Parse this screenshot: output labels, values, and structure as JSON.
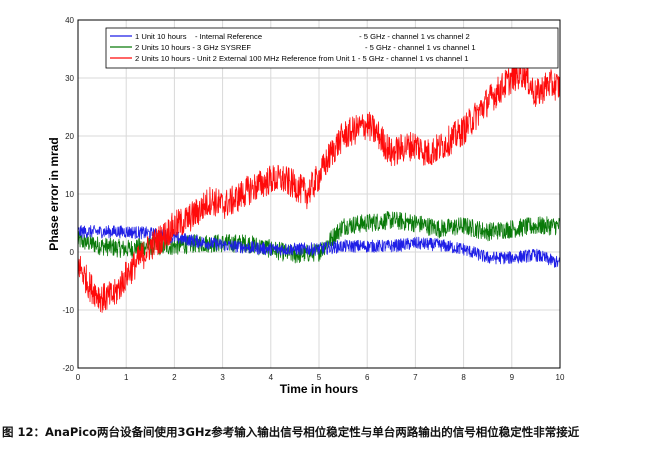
{
  "caption": "图 12：AnaPico两台设备间使用3GHz参考输入输出信号相位稳定性与单台两路输出的信号相位稳定性非常接近",
  "chart_data": {
    "type": "line",
    "title": "",
    "xlabel": "Time in hours",
    "ylabel": "Phase error in mrad",
    "xlim": [
      0,
      10
    ],
    "ylim": [
      -20,
      40
    ],
    "xticks": [
      "0",
      "1",
      "2",
      "3",
      "4",
      "5",
      "6",
      "7",
      "8",
      "9",
      "10"
    ],
    "yticks": [
      "-20",
      "-10",
      "0",
      "10",
      "20",
      "30",
      "40"
    ],
    "grid": true,
    "legend_position": "top-center",
    "series": [
      {
        "name": "1 Unit 10 hours    - Internal Reference                                              - 5 GHz - channel 1 vs channel 2",
        "color": "#1f1fe6",
        "x": [
          0,
          0.5,
          1,
          1.5,
          2,
          2.5,
          3,
          3.5,
          4,
          4.5,
          5,
          5.5,
          6,
          6.5,
          7,
          7.5,
          8,
          8.5,
          9,
          9.5,
          10
        ],
        "y": [
          3.5,
          3.5,
          3.5,
          3.2,
          2.5,
          1.8,
          1.2,
          0.8,
          0.5,
          0.5,
          0.5,
          1.0,
          1.0,
          1.0,
          1.5,
          1.2,
          0.5,
          -1.0,
          -1.0,
          -0.5,
          -2.0
        ]
      },
      {
        "name": "2 Units 10 hours - 3 GHz SYSREF                                                      - 5 GHz - channel 1 vs channel 1",
        "color": "#0a7a0a",
        "x": [
          0,
          0.5,
          1,
          1.5,
          2,
          2.5,
          3,
          3.5,
          4,
          4.5,
          5,
          5.5,
          6,
          6.5,
          7,
          7.5,
          8,
          8.5,
          9,
          9.5,
          10
        ],
        "y": [
          2.0,
          1.0,
          0.5,
          1.0,
          1.0,
          1.5,
          1.5,
          1.5,
          0.5,
          -0.5,
          0.0,
          4.5,
          5.0,
          5.5,
          5.0,
          4.0,
          4.5,
          3.5,
          4.0,
          4.5,
          4.5
        ]
      },
      {
        "name": "2 Units 10 hours - Unit 2 External 100 MHz Reference from Unit 1 - 5 GHz - channel 1 vs channel 1",
        "color": "#ff0a0a",
        "x": [
          0,
          0.25,
          0.5,
          0.75,
          1,
          1.25,
          1.5,
          1.75,
          2,
          2.25,
          2.5,
          2.75,
          3,
          3.25,
          3.5,
          3.75,
          4,
          4.25,
          4.5,
          4.75,
          5,
          5.25,
          5.5,
          5.75,
          6,
          6.25,
          6.5,
          6.75,
          7,
          7.25,
          7.5,
          7.75,
          8,
          8.25,
          8.5,
          8.75,
          9,
          9.25,
          9.5,
          9.75,
          10
        ],
        "y": [
          -2.0,
          -6.0,
          -8.0,
          -7.5,
          -4.0,
          -1.5,
          1.0,
          2.5,
          4.5,
          5.5,
          7.0,
          9.0,
          8.0,
          9.0,
          10.5,
          11.5,
          12.5,
          12.5,
          11.5,
          10.0,
          13.0,
          17.0,
          20.0,
          21.0,
          22.0,
          20.0,
          17.0,
          18.0,
          18.5,
          17.0,
          18.0,
          19.5,
          21.0,
          23.5,
          26.0,
          28.0,
          30.0,
          31.0,
          27.0,
          29.0,
          28.5
        ]
      }
    ]
  }
}
